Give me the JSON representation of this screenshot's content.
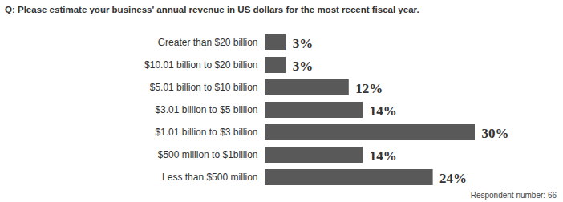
{
  "chart_data": {
    "type": "bar",
    "orientation": "horizontal",
    "title": "Q: Please estimate your business' annual revenue in US dollars for the most recent fiscal year.",
    "caption": "Respondent number: 66",
    "categories": [
      "Greater than $20 billion",
      "$10.01 billion to $20 billion",
      "$5.01 billion to $10 billion",
      "$3.01 billion to $5 billion",
      "$1.01 billion to $3 billion",
      "$500 million to $1billion",
      "Less than $500 million"
    ],
    "values": [
      3,
      3,
      12,
      14,
      30,
      14,
      24
    ],
    "value_labels": [
      "3%",
      "3%",
      "12%",
      "14%",
      "30%",
      "14%",
      "24%"
    ],
    "data_labels": true,
    "color": "#595959",
    "xlim": [
      0,
      30
    ],
    "tick_labels": "y",
    "grid": false
  }
}
